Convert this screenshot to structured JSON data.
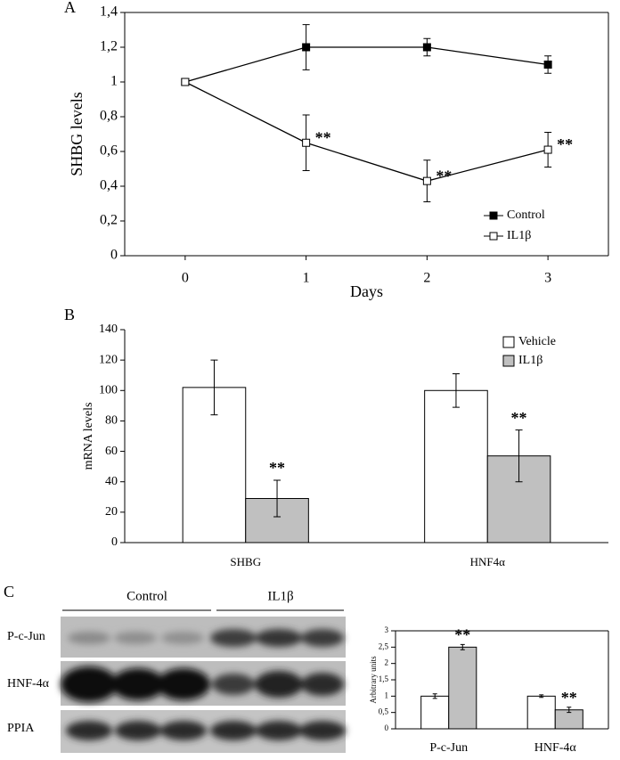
{
  "panel_labels": [
    "A",
    "B",
    "C"
  ],
  "blot": {
    "group_labels": [
      "Control",
      "IL1β"
    ],
    "row_labels": [
      "P-c-Jun",
      "HNF-4α",
      "PPIA"
    ]
  },
  "chart_data": [
    {
      "type": "line",
      "xlabel": "Days",
      "ylabel": "SHBG levels",
      "x": [
        0,
        1,
        2,
        3
      ],
      "xlim": [
        -0.5,
        3.5
      ],
      "xticks": [
        0,
        1,
        2,
        3
      ],
      "ylim": [
        0,
        1.4
      ],
      "yticks": [
        0,
        {
          "value": 0.2,
          "label": "0,2"
        },
        {
          "value": 0.4,
          "label": "0,4"
        },
        {
          "value": 0.6,
          "label": "0,6"
        },
        {
          "value": 0.8,
          "label": "0,8"
        },
        1,
        {
          "value": 1.2,
          "label": "1,2"
        },
        {
          "value": 1.4,
          "label": "1,4"
        }
      ],
      "legend": "lower right",
      "series": [
        {
          "name": "Control",
          "color": "#000000",
          "marker": "filled",
          "values": [
            1,
            1.2,
            1.2,
            1.1
          ],
          "errors": [
            0,
            0.13,
            0.05,
            0.05
          ]
        },
        {
          "name": "IL1β",
          "color": "#000000",
          "marker": "open",
          "values": [
            1,
            0.65,
            0.43,
            0.61
          ],
          "errors": [
            0,
            0.16,
            0.12,
            0.1
          ],
          "significance": [
            null,
            "**",
            "**",
            "**"
          ]
        }
      ]
    },
    {
      "type": "bar",
      "ylabel": "mRNA levels",
      "categories": [
        "SHBG",
        "HNF4α"
      ],
      "ylim": [
        0,
        140
      ],
      "yticks": [
        0,
        20,
        40,
        60,
        80,
        100,
        120,
        140
      ],
      "legend": "upper right",
      "series": [
        {
          "name": "Vehicle",
          "color": "#ffffff",
          "values": [
            102,
            100
          ],
          "errors": [
            18,
            11
          ]
        },
        {
          "name": "IL1β",
          "color": "#c0c0c0",
          "values": [
            29,
            57
          ],
          "errors": [
            12,
            17
          ],
          "significance": [
            "**",
            "**"
          ]
        }
      ]
    },
    {
      "type": "bar",
      "ylabel": "Arbitrary units",
      "categories": [
        "P-c-Jun",
        "HNF-4α"
      ],
      "ylim": [
        0,
        3
      ],
      "yticks": [
        0,
        {
          "value": 0.5,
          "label": "0,5"
        },
        1,
        {
          "value": 1.5,
          "label": "1,5"
        },
        2,
        {
          "value": 2.5,
          "label": "2,5"
        },
        3
      ],
      "series": [
        {
          "color": "#ffffff",
          "values": [
            1,
            1
          ],
          "errors": [
            0.07,
            0.04
          ]
        },
        {
          "color": "#c0c0c0",
          "values": [
            2.5,
            0.58
          ],
          "errors": [
            0.08,
            0.08
          ],
          "significance": [
            "**",
            "**"
          ]
        }
      ]
    }
  ]
}
